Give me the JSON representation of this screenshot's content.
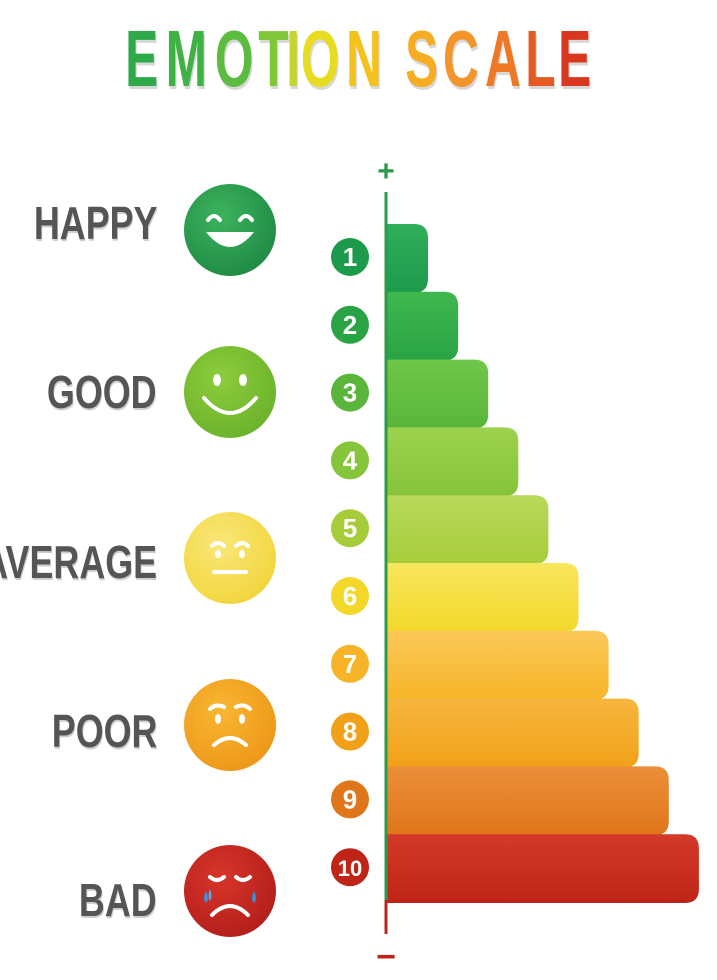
{
  "title": {
    "letters": [
      {
        "ch": "E",
        "color": "#2eaa4a"
      },
      {
        "ch": "M",
        "color": "#3fb246"
      },
      {
        "ch": "O",
        "color": "#5cbc3f"
      },
      {
        "ch": "T",
        "color": "#80c738"
      },
      {
        "ch": "I",
        "color": "#c4d62c"
      },
      {
        "ch": "O",
        "color": "#e7dc1f"
      },
      {
        "ch": "N",
        "color": "#f4c21a"
      },
      {
        "ch": " ",
        "color": "#ffffff"
      },
      {
        "ch": "S",
        "color": "#f6ad24"
      },
      {
        "ch": "C",
        "color": "#f3952a"
      },
      {
        "ch": "A",
        "color": "#ef7826"
      },
      {
        "ch": "L",
        "color": "#e45a22"
      },
      {
        "ch": "E",
        "color": "#d8381f"
      }
    ]
  },
  "axis": {
    "top_symbol": "+",
    "bottom_symbol": "−",
    "color": "#2b9a4a",
    "bottom_color": "#b8261c"
  },
  "emotions": [
    {
      "label": "HAPPY",
      "mood": "laughing",
      "color_light": "#3db35d",
      "color_dark": "#1f8a44"
    },
    {
      "label": "GOOD",
      "mood": "smiling",
      "color_light": "#8dcc3c",
      "color_dark": "#6bb22b"
    },
    {
      "label": "AVERAGE",
      "mood": "neutral",
      "color_light": "#f9e778",
      "color_dark": "#f2d53c"
    },
    {
      "label": "POOR",
      "mood": "sad",
      "color_light": "#f8b733",
      "color_dark": "#ee9618"
    },
    {
      "label": "BAD",
      "mood": "crying",
      "color_light": "#d8352a",
      "color_dark": "#b21e1a"
    }
  ],
  "levels": [
    {
      "num": "1",
      "color": "#1e9a4c",
      "light": "#2fae5b"
    },
    {
      "num": "2",
      "color": "#2aa345",
      "light": "#3fb84f"
    },
    {
      "num": "3",
      "color": "#59b63a",
      "light": "#6fc64a"
    },
    {
      "num": "4",
      "color": "#86c43a",
      "light": "#9dd24e"
    },
    {
      "num": "5",
      "color": "#a6cc3a",
      "light": "#b8d95a"
    },
    {
      "num": "6",
      "color": "#f3d82a",
      "light": "#f8e65e"
    },
    {
      "num": "7",
      "color": "#f7b429",
      "light": "#fbc95a"
    },
    {
      "num": "8",
      "color": "#f1a118",
      "light": "#f6b63e"
    },
    {
      "num": "9",
      "color": "#e0761a",
      "light": "#eb8f3a"
    },
    {
      "num": "10",
      "color": "#bf2416",
      "light": "#d43a2a"
    }
  ]
}
